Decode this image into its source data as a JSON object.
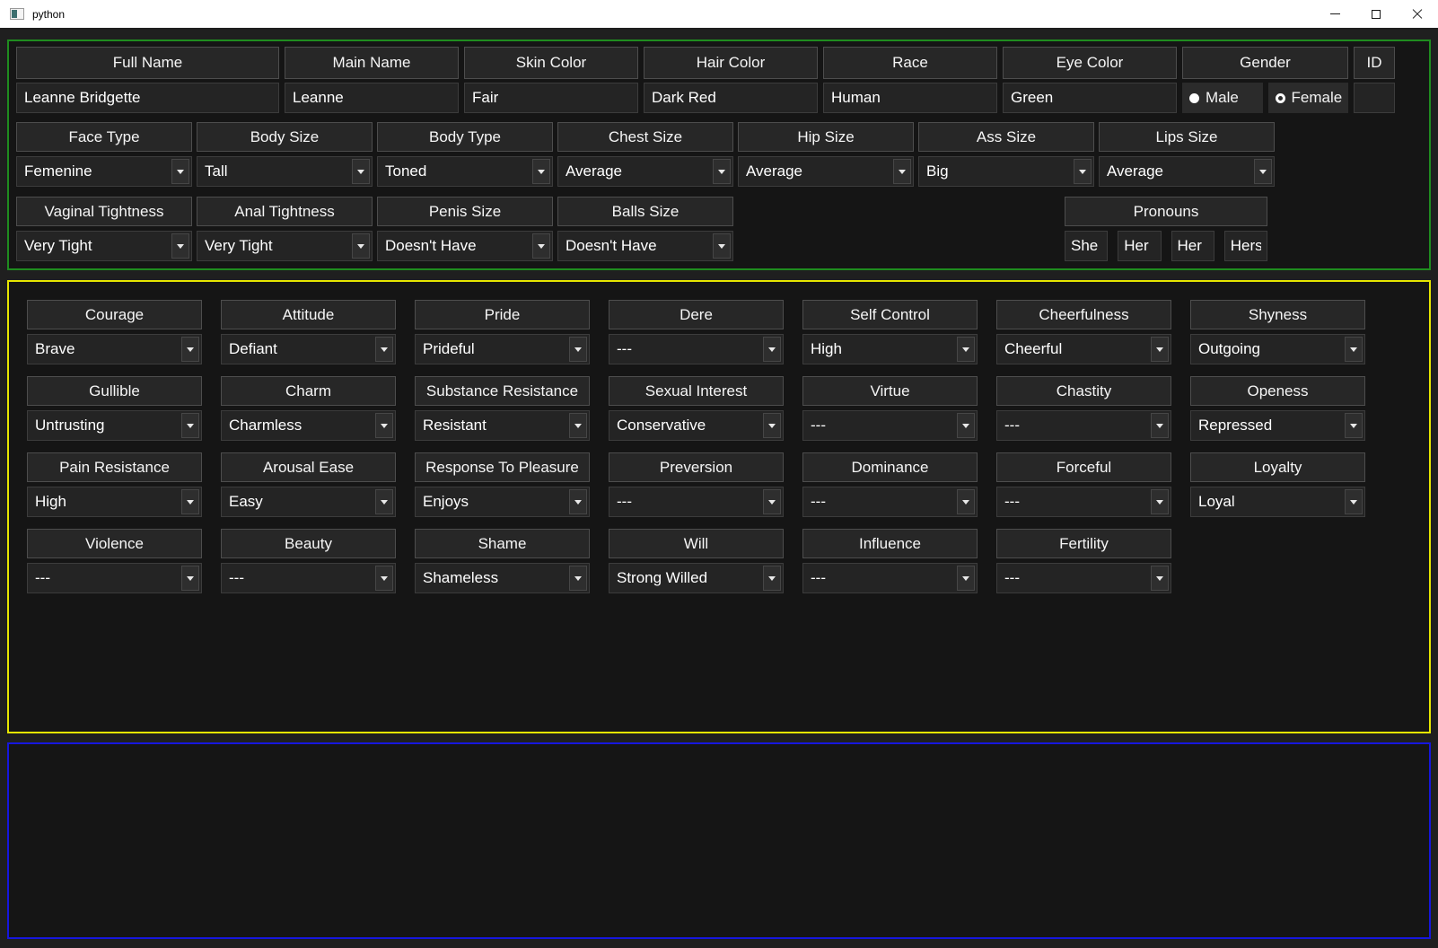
{
  "window": {
    "title": "python",
    "controls": {
      "minimize": "minimize",
      "maximize": "maximize",
      "close": "close"
    }
  },
  "colors": {
    "titlebar_bg": "#ffffff",
    "window_bg": "#1f1f1f",
    "identity_section_border": "#1f8c1f",
    "traits_section_border": "#e6e600",
    "log_section_border": "#1616dd"
  },
  "identity": {
    "columns": [
      {
        "label": "Full Name",
        "value": "Leanne Bridgette"
      },
      {
        "label": "Main Name",
        "value": "Leanne"
      },
      {
        "label": "Skin Color",
        "value": "Fair"
      },
      {
        "label": "Hair Color",
        "value": "Dark Red"
      },
      {
        "label": "Race",
        "value": "Human"
      },
      {
        "label": "Eye Color",
        "value": "Green"
      }
    ],
    "gender": {
      "label": "Gender",
      "male": "Male",
      "female": "Female"
    },
    "id": {
      "label": "ID",
      "value": ""
    }
  },
  "body_row": [
    {
      "label": "Face Type",
      "value": "Femenine"
    },
    {
      "label": "Body Size",
      "value": "Tall"
    },
    {
      "label": "Body Type",
      "value": "Toned"
    },
    {
      "label": "Chest Size",
      "value": "Average"
    },
    {
      "label": "Hip Size",
      "value": "Average"
    },
    {
      "label": "Ass Size",
      "value": "Big"
    },
    {
      "label": "Lips Size",
      "value": "Average"
    }
  ],
  "intimate_row": [
    {
      "label": "Vaginal Tightness",
      "value": "Very Tight"
    },
    {
      "label": "Anal Tightness",
      "value": "Very Tight"
    },
    {
      "label": "Penis Size",
      "value": "Doesn't Have"
    },
    {
      "label": "Balls Size",
      "value": "Doesn't Have"
    }
  ],
  "pronouns": {
    "label": "Pronouns",
    "values": [
      "She",
      "Her",
      "Her",
      "Hers"
    ]
  },
  "traits": {
    "items": [
      {
        "label": "Courage",
        "value": "Brave"
      },
      {
        "label": "Attitude",
        "value": "Defiant"
      },
      {
        "label": "Pride",
        "value": "Prideful"
      },
      {
        "label": "Dere",
        "value": "---"
      },
      {
        "label": "Self Control",
        "value": "High"
      },
      {
        "label": "Cheerfulness",
        "value": "Cheerful"
      },
      {
        "label": "Shyness",
        "value": "Outgoing"
      },
      {
        "label": "Gullible",
        "value": "Untrusting"
      },
      {
        "label": "Charm",
        "value": "Charmless"
      },
      {
        "label": "Substance Resistance",
        "value": "Resistant"
      },
      {
        "label": "Sexual Interest",
        "value": "Conservative"
      },
      {
        "label": "Virtue",
        "value": "---"
      },
      {
        "label": "Chastity",
        "value": "---"
      },
      {
        "label": "Openess",
        "value": "Repressed"
      },
      {
        "label": "Pain Resistance",
        "value": "High"
      },
      {
        "label": "Arousal Ease",
        "value": "Easy"
      },
      {
        "label": "Response To Pleasure",
        "value": "Enjoys"
      },
      {
        "label": "Preversion",
        "value": "---"
      },
      {
        "label": "Dominance",
        "value": "---"
      },
      {
        "label": "Forceful",
        "value": "---"
      },
      {
        "label": "Loyalty",
        "value": "Loyal"
      },
      {
        "label": "Violence",
        "value": "---"
      },
      {
        "label": "Beauty",
        "value": "---"
      },
      {
        "label": "Shame",
        "value": "Shameless"
      },
      {
        "label": "Will",
        "value": "Strong Willed"
      },
      {
        "label": "Influence",
        "value": "---"
      },
      {
        "label": "Fertility",
        "value": "---"
      }
    ]
  }
}
